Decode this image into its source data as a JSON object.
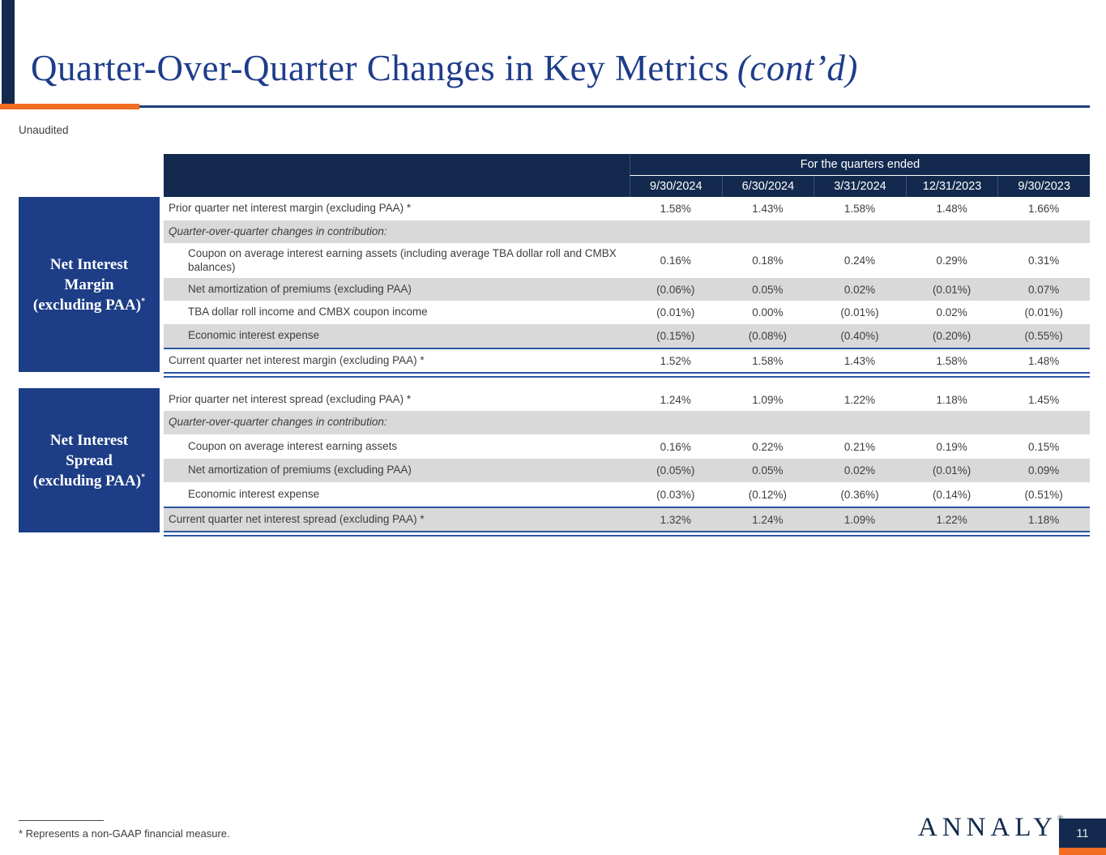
{
  "header": {
    "title": "Quarter-Over-Quarter Changes in Key Metrics",
    "title_cont": "(cont’d)",
    "unaudited": "Unaudited"
  },
  "table_header": {
    "caption": "For the quarters ended",
    "columns": [
      "9/30/2024",
      "6/30/2024",
      "3/31/2024",
      "12/31/2023",
      "9/30/2023"
    ]
  },
  "tables": [
    {
      "side_label": {
        "line1": "Net Interest",
        "line2": "Margin",
        "line3": "(excluding PAA)",
        "sup": "*"
      },
      "rows": [
        {
          "label": "Prior quarter net interest margin (excluding PAA) *",
          "values": [
            "1.58%",
            "1.43%",
            "1.58%",
            "1.48%",
            "1.66%"
          ]
        },
        {
          "label": "Quarter-over-quarter changes in contribution:",
          "values": []
        },
        {
          "label": "Coupon on average interest earning assets (including average TBA dollar roll and CMBX balances)",
          "values": [
            "0.16%",
            "0.18%",
            "0.24%",
            "0.29%",
            "0.31%"
          ]
        },
        {
          "label": "Net amortization of premiums (excluding PAA)",
          "values": [
            "(0.06%)",
            "0.05%",
            "0.02%",
            "(0.01%)",
            "0.07%"
          ]
        },
        {
          "label": "TBA dollar roll income and CMBX coupon income",
          "values": [
            "(0.01%)",
            "0.00%",
            "(0.01%)",
            "0.02%",
            "(0.01%)"
          ]
        },
        {
          "label": "Economic interest expense",
          "values": [
            "(0.15%)",
            "(0.08%)",
            "(0.40%)",
            "(0.20%)",
            "(0.55%)"
          ]
        },
        {
          "label": "Current quarter net interest margin (excluding PAA) *",
          "values": [
            "1.52%",
            "1.58%",
            "1.43%",
            "1.58%",
            "1.48%"
          ]
        }
      ]
    },
    {
      "side_label": {
        "line1": "Net Interest",
        "line2": "Spread",
        "line3": "(excluding PAA)",
        "sup": "*"
      },
      "rows": [
        {
          "label": "Prior quarter net interest spread (excluding PAA) *",
          "values": [
            "1.24%",
            "1.09%",
            "1.22%",
            "1.18%",
            "1.45%"
          ]
        },
        {
          "label": "Quarter-over-quarter changes in contribution:",
          "values": []
        },
        {
          "label": "Coupon on average interest earning assets",
          "values": [
            "0.16%",
            "0.22%",
            "0.21%",
            "0.19%",
            "0.15%"
          ]
        },
        {
          "label": "Net amortization of premiums (excluding PAA)",
          "values": [
            "(0.05%)",
            "0.05%",
            "0.02%",
            "(0.01%)",
            "0.09%"
          ]
        },
        {
          "label": "Economic interest expense",
          "values": [
            "(0.03%)",
            "(0.12%)",
            "(0.36%)",
            "(0.14%)",
            "(0.51%)"
          ]
        },
        {
          "label": "Current quarter net interest spread (excluding PAA) *",
          "values": [
            "1.32%",
            "1.24%",
            "1.09%",
            "1.22%",
            "1.18%"
          ]
        }
      ]
    }
  ],
  "footer": {
    "footnote": "* Represents a non-GAAP financial measure.",
    "logo_text": "ANNALY",
    "logo_mark": "®",
    "page_number": "11"
  },
  "colors": {
    "header_navy": "#132a4e",
    "side_label_blue": "#1d3d86",
    "title_blue": "#1e3d8a",
    "accent_orange": "#f26c21",
    "row_gray": "#d9d9d9",
    "rule_blue": "#2a57a0",
    "body_text": "#3d3d3d"
  }
}
